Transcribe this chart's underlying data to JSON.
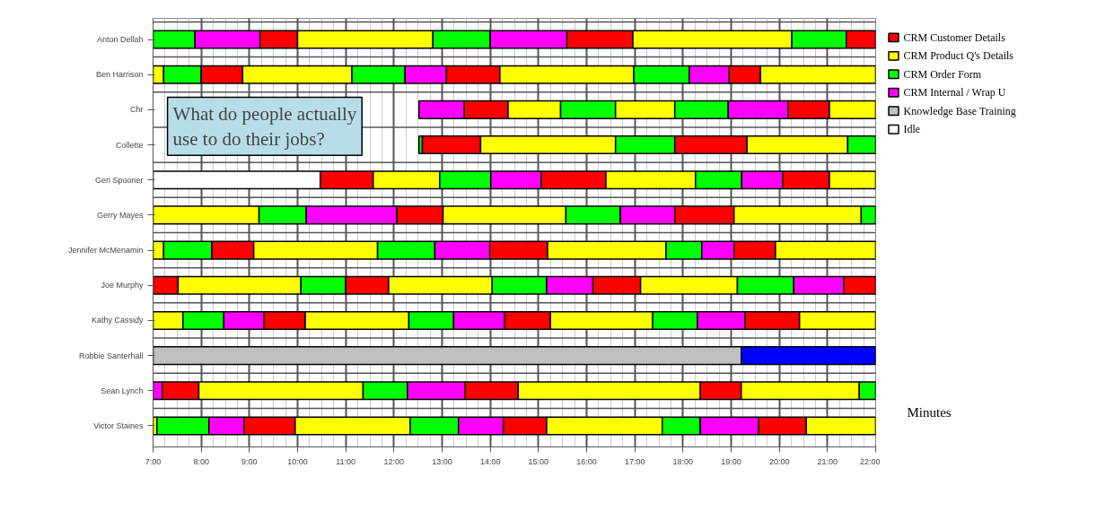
{
  "chart_data": {
    "type": "bar",
    "orientation": "horizontal",
    "categories": [
      "Anton Dellah",
      "Ben Harrison",
      "Chr",
      "Collette",
      "Geri Spooner",
      "Gerry Mayes",
      "Jennifer McMenamin",
      "Joe Murphy",
      "Kathy Cassidy",
      "Robbie Santerhall",
      "Sean Lynch",
      "Victor Staines"
    ],
    "xlabel": "Minutes",
    "xlim": [
      7,
      22
    ],
    "xticks": [
      {
        "value": 7,
        "label": "7:00"
      },
      {
        "value": 8,
        "label": "8:00"
      },
      {
        "value": 9,
        "label": "9:00"
      },
      {
        "value": 10,
        "label": "10:00"
      },
      {
        "value": 11,
        "label": "11:00"
      },
      {
        "value": 12,
        "label": "12:00"
      },
      {
        "value": 13,
        "label": "13:00"
      },
      {
        "value": 14,
        "label": "14:00"
      },
      {
        "value": 15,
        "label": "15:00"
      },
      {
        "value": 16,
        "label": "16:00"
      },
      {
        "value": 17,
        "label": "17:00"
      },
      {
        "value": 18,
        "label": "18:00"
      },
      {
        "value": 19,
        "label": "19:00"
      },
      {
        "value": 20,
        "label": "20:00"
      },
      {
        "value": 21,
        "label": "21:00"
      },
      {
        "value": 22,
        "label": "22:00"
      }
    ],
    "grid": "x",
    "legend": "top right",
    "annotations": [
      "What do people actually use to do their jobs?"
    ],
    "series": [
      {
        "name": "CRM Customer Details",
        "color": "#ff0000",
        "values": [
          null,
          null,
          null,
          null,
          null,
          null,
          null,
          null,
          null,
          null,
          null,
          null
        ]
      },
      {
        "name": "CRM Product Q's Details",
        "color": "#ffff00",
        "values": [
          null,
          null,
          null,
          null,
          null,
          null,
          null,
          null,
          null,
          null,
          null,
          null
        ]
      },
      {
        "name": "CRM Order Form",
        "color": "#00ff00",
        "values": [
          null,
          null,
          null,
          null,
          null,
          null,
          null,
          null,
          null,
          null,
          null,
          null
        ]
      },
      {
        "name": "CRM Internal / Wrap U",
        "color": "#ff00ff",
        "values": [
          null,
          null,
          null,
          null,
          null,
          null,
          null,
          null,
          null,
          null,
          null,
          null
        ]
      },
      {
        "name": "Knowledge Base Training",
        "color": "#c0c0c0",
        "values": [
          null,
          null,
          null,
          null,
          null,
          null,
          null,
          null,
          null,
          null,
          null,
          null
        ]
      },
      {
        "name": "Idle",
        "color": "#ffffff",
        "values": [
          null,
          null,
          null,
          null,
          null,
          null,
          null,
          null,
          null,
          null,
          null,
          null
        ]
      },
      {
        "base": [
          7,
          7,
          12.52,
          12.52,
          7,
          7,
          7,
          7,
          7,
          7,
          7,
          7
        ],
        "values": [
          0.87,
          0.22,
          0.94,
          0.07,
          3.47,
          2.2,
          0.22,
          0.52,
          0.62,
          12.21,
          0.19,
          0.08
        ],
        "colors": [
          "#00ff00",
          "#ffff00",
          "#ff00ff",
          "#00ff00",
          "#ffffff",
          "#ffff00",
          "#ffff00",
          "#ff0000",
          "#ffff00",
          "#c0c0c0",
          "#ff00ff",
          "#ffff00"
        ]
      },
      {
        "base": [
          7.87,
          7.22,
          13.46,
          12.59,
          10.47,
          9.2,
          7.22,
          7.52,
          7.62,
          19.21,
          7.19,
          7.08
        ],
        "values": [
          1.35,
          0.78,
          0.91,
          1.21,
          1.1,
          0.98,
          1.0,
          2.55,
          0.85,
          2.79,
          0.76,
          1.08
        ],
        "colors": [
          "#ff00ff",
          "#00ff00",
          "#ff0000",
          "#ff0000",
          "#ff0000",
          "#00ff00",
          "#00ff00",
          "#ffff00",
          "#00ff00",
          "#0000ff",
          "#ff0000",
          "#00ff00"
        ]
      },
      {
        "base": [
          9.22,
          8.0,
          14.37,
          13.8,
          11.57,
          10.18,
          8.22,
          10.07,
          8.47,
          null,
          7.95,
          8.16
        ],
        "values": [
          0.78,
          0.86,
          1.09,
          2.8,
          1.38,
          1.88,
          0.87,
          0.93,
          0.83,
          null,
          3.41,
          0.73
        ],
        "colors": [
          "#ff0000",
          "#ff0000",
          "#ffff00",
          "#ffff00",
          "#ffff00",
          "#ff00ff",
          "#ff0000",
          "#00ff00",
          "#ff00ff",
          null,
          "#ffff00",
          "#ff00ff"
        ]
      },
      {
        "base": [
          10.0,
          8.86,
          15.46,
          16.6,
          12.95,
          12.06,
          9.09,
          11.0,
          9.3,
          null,
          11.36,
          8.89
        ],
        "values": [
          2.81,
          2.27,
          1.14,
          1.23,
          1.06,
          0.96,
          2.57,
          0.89,
          0.86,
          null,
          0.92,
          1.06
        ],
        "colors": [
          "#ffff00",
          "#ffff00",
          "#00ff00",
          "#00ff00",
          "#00ff00",
          "#ff0000",
          "#ffff00",
          "#ff0000",
          "#ff0000",
          null,
          "#00ff00",
          "#ff0000"
        ]
      },
      {
        "base": [
          12.81,
          11.13,
          16.6,
          17.83,
          14.01,
          13.02,
          11.66,
          11.89,
          10.16,
          null,
          12.28,
          9.95
        ],
        "values": [
          1.19,
          1.1,
          1.23,
          1.5,
          1.05,
          2.55,
          1.19,
          2.15,
          2.15,
          null,
          1.19,
          2.39
        ],
        "colors": [
          "#00ff00",
          "#00ff00",
          "#ffff00",
          "#ff0000",
          "#ff00ff",
          "#ffff00",
          "#00ff00",
          "#ffff00",
          "#ffff00",
          null,
          "#ff00ff",
          "#ffff00"
        ]
      },
      {
        "base": [
          14.0,
          12.23,
          17.83,
          19.33,
          15.06,
          15.57,
          12.85,
          14.04,
          12.31,
          null,
          13.47,
          12.34
        ],
        "values": [
          1.59,
          0.86,
          1.11,
          2.09,
          1.34,
          1.13,
          1.14,
          1.13,
          0.93,
          null,
          1.11,
          1.0
        ],
        "colors": [
          "#ff00ff",
          "#ff00ff",
          "#00ff00",
          "#ffff00",
          "#ff0000",
          "#00ff00",
          "#ff00ff",
          "#00ff00",
          "#00ff00",
          null,
          "#ff0000",
          "#00ff00"
        ]
      },
      {
        "base": [
          15.59,
          13.09,
          18.94,
          21.42,
          16.4,
          16.7,
          13.99,
          15.17,
          13.24,
          null,
          14.58,
          13.34
        ],
        "values": [
          1.37,
          1.11,
          1.24,
          0.58,
          1.86,
          1.13,
          1.2,
          0.96,
          1.06,
          null,
          3.78,
          0.93
        ],
        "colors": [
          "#ff0000",
          "#ff0000",
          "#ff00ff",
          "#00ff00",
          "#ffff00",
          "#ff00ff",
          "#ff0000",
          "#ff00ff",
          "#ff00ff",
          null,
          "#ffff00",
          "#ff00ff"
        ]
      },
      {
        "base": [
          16.96,
          14.2,
          20.18,
          null,
          18.26,
          17.83,
          15.19,
          16.13,
          14.3,
          null,
          18.36,
          14.27
        ],
        "values": [
          3.3,
          2.78,
          0.86,
          null,
          0.96,
          1.23,
          2.46,
          0.99,
          0.95,
          null,
          0.85,
          0.9
        ],
        "colors": [
          "#ffff00",
          "#ffff00",
          "#ff0000",
          null,
          "#00ff00",
          "#ff0000",
          "#ffff00",
          "#ff0000",
          "#ff0000",
          null,
          "#ff0000",
          "#ff0000"
        ]
      },
      {
        "base": [
          20.26,
          16.98,
          21.04,
          null,
          19.22,
          19.06,
          17.65,
          17.12,
          15.25,
          null,
          19.21,
          15.17
        ],
        "values": [
          1.13,
          1.15,
          0.96,
          null,
          0.85,
          2.64,
          0.74,
          2.01,
          2.12,
          null,
          2.45,
          2.4
        ],
        "colors": [
          "#00ff00",
          "#00ff00",
          "#ffff00",
          null,
          "#ff00ff",
          "#ffff00",
          "#00ff00",
          "#ffff00",
          "#ffff00",
          null,
          "#ffff00",
          "#ffff00"
        ]
      },
      {
        "base": [
          21.39,
          18.13,
          null,
          null,
          20.07,
          21.7,
          18.39,
          19.13,
          17.37,
          null,
          21.66,
          17.57
        ],
        "values": [
          0.61,
          0.83,
          null,
          null,
          0.97,
          0.3,
          0.67,
          1.17,
          0.93,
          null,
          0.34,
          0.79
        ],
        "colors": [
          "#ff0000",
          "#ff00ff",
          null,
          null,
          "#ff0000",
          "#00ff00",
          "#ff00ff",
          "#00ff00",
          "#00ff00",
          null,
          "#00ff00",
          "#00ff00"
        ]
      },
      {
        "base": [
          null,
          18.96,
          null,
          null,
          21.04,
          null,
          19.06,
          20.3,
          18.3,
          null,
          null,
          18.36
        ],
        "values": [
          null,
          0.65,
          null,
          null,
          0.96,
          null,
          0.86,
          1.04,
          0.99,
          null,
          null,
          1.21
        ],
        "colors": [
          null,
          "#ff0000",
          null,
          null,
          "#ffff00",
          null,
          "#ff0000",
          "#ff00ff",
          "#ff00ff",
          null,
          null,
          "#ff00ff"
        ]
      },
      {
        "base": [
          null,
          19.61,
          null,
          null,
          null,
          null,
          19.92,
          21.34,
          19.29,
          null,
          null,
          19.57
        ],
        "values": [
          null,
          2.39,
          null,
          null,
          null,
          null,
          2.08,
          0.66,
          1.13,
          null,
          null,
          0.99
        ],
        "colors": [
          null,
          "#ffff00",
          null,
          null,
          null,
          null,
          "#ffff00",
          "#ff0000",
          "#ff0000",
          null,
          null,
          "#ff0000"
        ]
      },
      {
        "base": [
          null,
          null,
          null,
          null,
          null,
          null,
          null,
          null,
          20.42,
          null,
          null,
          20.56
        ],
        "values": [
          null,
          null,
          null,
          null,
          null,
          null,
          null,
          null,
          1.58,
          null,
          null,
          1.44
        ],
        "colors": [
          null,
          null,
          null,
          null,
          null,
          null,
          null,
          null,
          "#ffff00",
          null,
          null,
          "#ffff00"
        ]
      }
    ]
  }
}
